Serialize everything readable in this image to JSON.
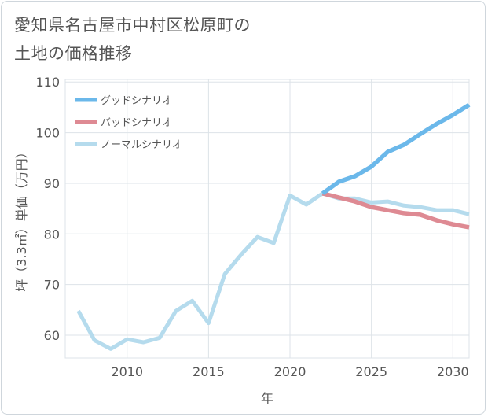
{
  "title_lines": [
    "愛知県名古屋市中村区松原町の",
    "土地の価格推移"
  ],
  "chart_data": {
    "type": "line",
    "xlabel": "年",
    "ylabel": "坪（3.3㎡）単価（万円）",
    "xlim": [
      2006.2,
      2031
    ],
    "ylim": [
      55.5,
      110.5
    ],
    "x_ticks": [
      2010,
      2015,
      2020,
      2025,
      2030
    ],
    "y_ticks": [
      60,
      70,
      80,
      90,
      100,
      110
    ],
    "grid": true,
    "legend_position": "top-left",
    "series": [
      {
        "name": "グッドシナリオ",
        "color": "#6bb8ea",
        "x": [
          2022,
          2023,
          2024,
          2025,
          2026,
          2027,
          2028,
          2029,
          2030,
          2031
        ],
        "values": [
          88.0,
          90.3,
          91.4,
          93.3,
          96.2,
          97.6,
          99.7,
          101.7,
          103.5,
          105.5
        ]
      },
      {
        "name": "バッドシナリオ",
        "color": "#de8a93",
        "x": [
          2022,
          2023,
          2024,
          2025,
          2026,
          2027,
          2028,
          2029,
          2030,
          2031
        ],
        "values": [
          88.0,
          87.2,
          86.4,
          85.3,
          84.7,
          84.1,
          83.8,
          82.7,
          81.9,
          81.3
        ]
      },
      {
        "name": "ノーマルシナリオ",
        "color": "#b5dbed",
        "x": [
          2007,
          2008,
          2009,
          2010,
          2011,
          2012,
          2013,
          2014,
          2015,
          2016,
          2017,
          2018,
          2019,
          2020,
          2021,
          2022,
          2023,
          2024,
          2025,
          2026,
          2027,
          2028,
          2029,
          2030,
          2031
        ],
        "values": [
          64.8,
          59.0,
          57.3,
          59.2,
          58.6,
          59.5,
          64.8,
          66.8,
          62.4,
          72.1,
          75.9,
          79.4,
          78.2,
          87.6,
          85.8,
          88.0,
          87.0,
          87.0,
          86.2,
          86.4,
          85.6,
          85.3,
          84.7,
          84.7,
          83.9
        ]
      }
    ]
  }
}
